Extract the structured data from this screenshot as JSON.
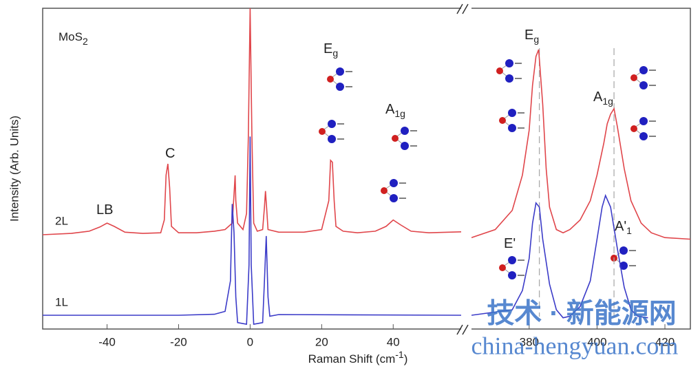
{
  "chart_data": [
    {
      "type": "line",
      "ylabel": "Intensity (Arb. Units)",
      "xlabel": {
        "text": "Raman Shift (cm",
        "sup": "-1",
        "after": ")"
      },
      "xlim": [
        -58,
        59
      ],
      "xticks": [
        -40,
        -20,
        0,
        20,
        40
      ],
      "ylim": [
        0,
        100
      ],
      "series": [
        {
          "name": "2L",
          "color": "#e0454a",
          "x": [
            -58,
            -50,
            -45,
            -42,
            -40,
            -38,
            -35,
            -30,
            -25,
            -24,
            -23.5,
            -23,
            -22.5,
            -22,
            -20,
            -15,
            -10,
            -7,
            -5,
            -4.5,
            -4.2,
            -4,
            -3.5,
            -2,
            -1,
            -0.5,
            0,
            0.5,
            1,
            2,
            3.5,
            4,
            4.3,
            4.6,
            5,
            8,
            15,
            20,
            22,
            22.5,
            23,
            23.5,
            24,
            26,
            30,
            35,
            38,
            40,
            42,
            45,
            50,
            59
          ],
          "values": [
            29.4,
            29.8,
            30.5,
            31.8,
            33,
            32,
            30.2,
            29.8,
            30,
            34,
            48,
            51.5,
            44,
            32,
            30,
            30,
            30.5,
            31,
            33,
            42,
            47.9,
            40,
            33,
            31,
            36,
            60,
            100,
            60,
            33,
            30.5,
            31,
            38,
            43,
            38,
            31,
            30.2,
            30.2,
            31,
            40,
            52.6,
            52,
            40,
            32,
            30.5,
            30,
            30.5,
            32,
            34,
            32.5,
            30.5,
            30,
            30.3
          ]
        },
        {
          "name": "1L",
          "color": "#3b3bc8",
          "x": [
            -58,
            -20,
            -10,
            -7,
            -5.5,
            -5,
            -4.5,
            -4,
            -3.5,
            -1,
            -0.3,
            0,
            0.3,
            1,
            3.5,
            4,
            4.5,
            5,
            5.5,
            8,
            59
          ],
          "values": [
            4.3,
            4.3,
            4.6,
            5.5,
            15,
            39,
            30,
            10,
            2,
            1.5,
            20,
            60,
            20,
            1.5,
            2,
            15,
            29,
            10,
            4,
            4.5,
            4.3
          ]
        }
      ]
    },
    {
      "type": "line",
      "xlim": [
        363,
        427.5
      ],
      "xticks": [
        380,
        400,
        420
      ],
      "ylim": [
        0,
        100
      ],
      "guide_lines": [
        383,
        405
      ],
      "series": [
        {
          "name": "2L",
          "color": "#e0454a",
          "x": [
            363,
            370,
            375,
            378,
            380,
            381,
            382,
            382.8,
            384,
            385,
            386,
            388,
            390,
            392,
            395,
            398,
            400,
            402,
            403,
            404,
            405,
            406,
            408,
            410,
            413,
            416,
            420,
            427.5
          ],
          "values": [
            28.5,
            31,
            37,
            48,
            62,
            76,
            85,
            87.1,
            70,
            50,
            38,
            31,
            30,
            31,
            34,
            40,
            48,
            58,
            64,
            67,
            68.7,
            63,
            50,
            40,
            33,
            30,
            28.5,
            28
          ]
        },
        {
          "name": "1L",
          "color": "#3b3bc8",
          "x": [
            363,
            375,
            378,
            380,
            381,
            382,
            383,
            384,
            386,
            388,
            390,
            392,
            395,
            398,
            400,
            401.5,
            402.5,
            404,
            406,
            408,
            410,
            412,
            415
          ],
          "values": [
            4.3,
            6,
            12,
            22,
            33,
            39.3,
            38,
            28,
            14,
            6,
            3.5,
            4,
            7,
            15,
            28,
            38,
            41.6,
            38,
            25,
            13,
            6,
            4,
            3.5
          ]
        }
      ]
    }
  ],
  "annotations": [
    {
      "text": "MoS",
      "sub": "2"
    },
    {
      "text": "LB"
    },
    {
      "text": "C"
    },
    {
      "text": "E",
      "sub": "g"
    },
    {
      "text": "A",
      "sub": "1g"
    },
    {
      "text": "E",
      "sub": "g"
    },
    {
      "text": "A",
      "sub": "1g"
    },
    {
      "text": "E'"
    },
    {
      "text": "A'",
      "sub": "1"
    }
  ],
  "watermark": [
    "技术 · 新能源网",
    "china-hengyuan.com"
  ]
}
